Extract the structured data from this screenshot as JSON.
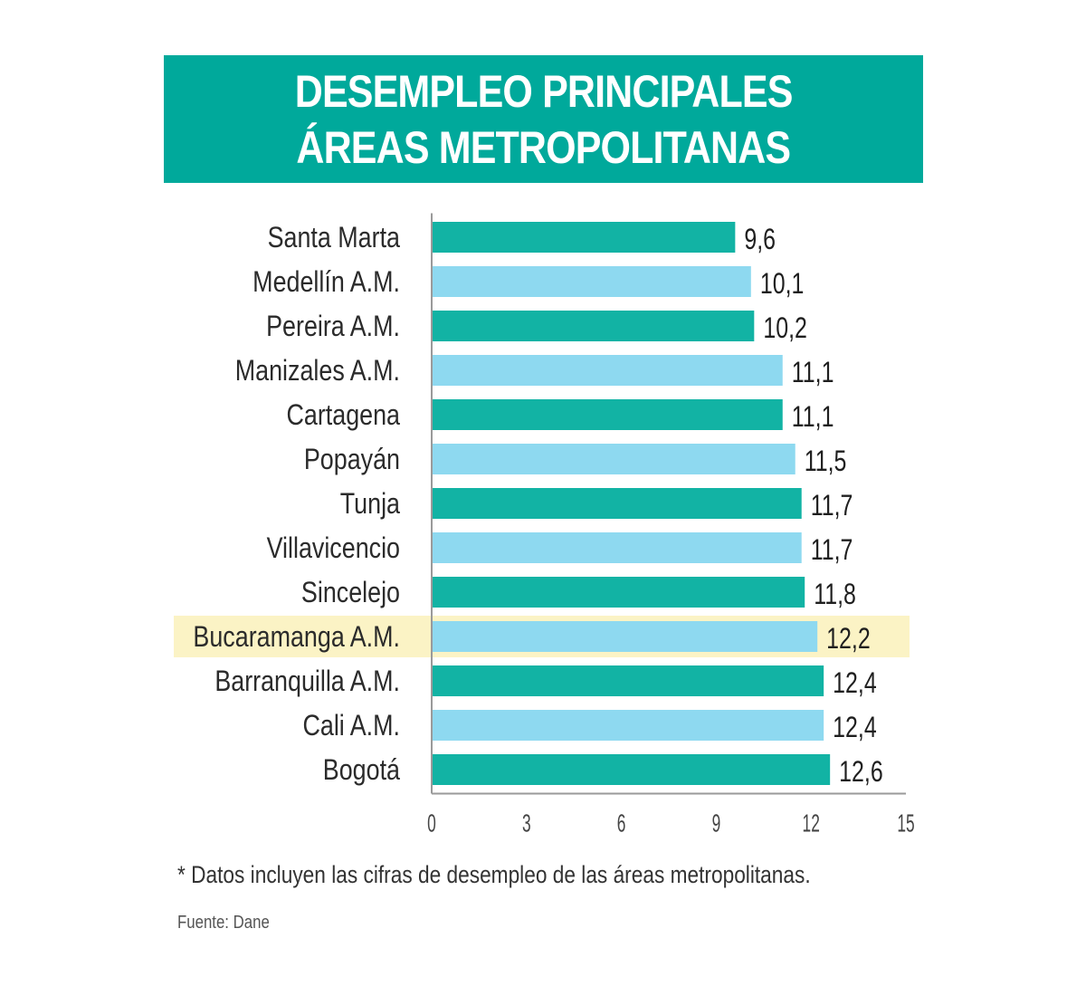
{
  "title": {
    "line1": "DESEMPLEO PRINCIPALES",
    "line2": "ÁREAS METROPOLITANAS"
  },
  "colors": {
    "title_bg": "#00a99b",
    "bar_dark": "#12b3a4",
    "bar_light": "#8ed9f0",
    "highlight": "#fbf3c5"
  },
  "chart_data": {
    "type": "bar",
    "orientation": "horizontal",
    "categories": [
      "Santa Marta",
      "Medellín A.M.",
      "Pereira A.M.",
      "Manizales A.M.",
      "Cartagena",
      "Popayán",
      "Tunja",
      "Villavicencio",
      "Sincelejo",
      "Bucaramanga A.M.",
      "Barranquilla A.M.",
      "Cali A.M.",
      "Bogotá"
    ],
    "values": [
      9.6,
      10.1,
      10.2,
      11.1,
      11.1,
      11.5,
      11.7,
      11.7,
      11.8,
      12.2,
      12.4,
      12.4,
      12.6
    ],
    "value_labels": [
      "9,6",
      "10,1",
      "10,2",
      "11,1",
      "11,1",
      "11,5",
      "11,7",
      "11,7",
      "11,8",
      "12,2",
      "12,4",
      "12,4",
      "12,6"
    ],
    "xlim": [
      0,
      15
    ],
    "xticks": [
      "0",
      "3",
      "6",
      "9",
      "12",
      "15"
    ],
    "highlighted_category": "Bucaramanga A.M.",
    "grid": false,
    "legend": "none"
  },
  "footnote": "* Datos incluyen las cifras de desempleo de las áreas metropolitanas.",
  "source": "Fuente: Dane"
}
